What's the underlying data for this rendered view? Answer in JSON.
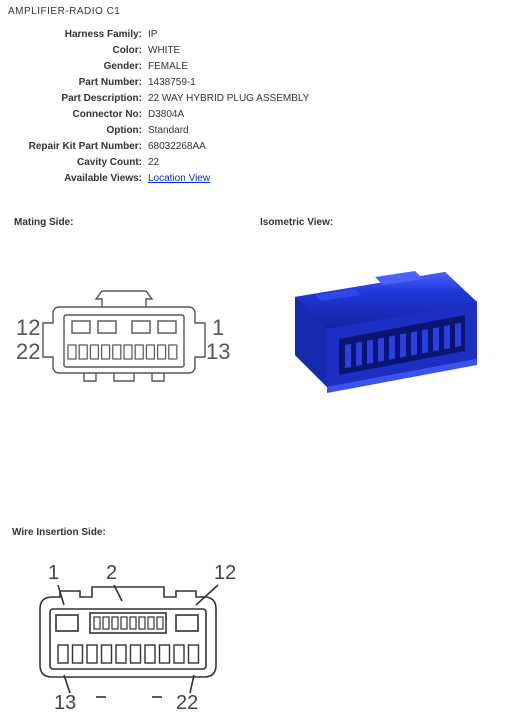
{
  "title": "AMPLIFIER-RADIO C1",
  "details": {
    "harness_family": {
      "label": "Harness Family:",
      "value": "IP"
    },
    "color": {
      "label": "Color:",
      "value": "WHITE"
    },
    "gender": {
      "label": "Gender:",
      "value": "FEMALE"
    },
    "part_number": {
      "label": "Part Number:",
      "value": "1438759-1"
    },
    "part_desc": {
      "label": "Part Description:",
      "value": "22 WAY HYBRID PLUG ASSEMBLY"
    },
    "connector_no": {
      "label": "Connector No:",
      "value": "D3804A"
    },
    "option": {
      "label": "Option:",
      "value": "Standard"
    },
    "repair_kit": {
      "label": "Repair Kit Part Number:",
      "value": "68032268AA"
    },
    "cavity_count": {
      "label": "Cavity Count:",
      "value": "22"
    },
    "available_views": {
      "label": "Available Views:",
      "value": "Location View"
    }
  },
  "sections": {
    "mating": "Mating Side:",
    "isometric": "Isometric View:",
    "wire": "Wire Insertion Side:"
  },
  "mating": {
    "pins": {
      "tl": "12",
      "tr": "1",
      "bl": "22",
      "br": "13"
    },
    "stroke": "#555555",
    "cavity_top_count": 4,
    "cavity_bottom_count": 10
  },
  "isometric": {
    "body_color": "#2138d8",
    "shadow_color": "#0b1e8f",
    "highlight_color": "#4a62ff",
    "socket_color": "#0a1570"
  },
  "wire": {
    "pins": {
      "tl": "1",
      "tm": "2",
      "tr": "12",
      "bl": "13",
      "br": "22"
    },
    "stroke": "#333333"
  }
}
